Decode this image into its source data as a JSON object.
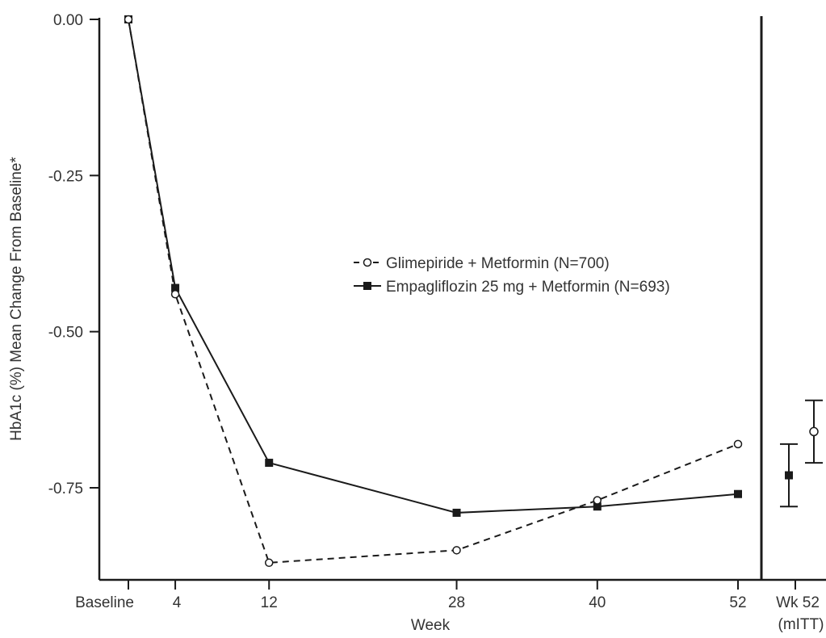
{
  "chart_data": {
    "type": "line",
    "xlabel": "Week",
    "ylabel": "HbA1c (%) Mean Change From Baseline*",
    "ylim": [
      -0.88,
      0.0
    ],
    "yticks": [
      "0.00",
      "-0.25",
      "-0.50",
      "-0.75"
    ],
    "x": [
      0,
      4,
      12,
      28,
      40,
      52
    ],
    "xtick_labels": [
      "Baseline",
      "4",
      "12",
      "28",
      "40",
      "52"
    ],
    "legend_placement": "center-right",
    "series": [
      {
        "name": "Glimepiride + Metformin (N=700)",
        "line_style": "dashed",
        "marker": "open-circle",
        "values": [
          0.0,
          -0.44,
          -0.87,
          -0.85,
          -0.77,
          -0.68
        ]
      },
      {
        "name": "Empagliflozin 25 mg + Metformin (N=693)",
        "line_style": "solid",
        "marker": "filled-square",
        "values": [
          0.0,
          -0.43,
          -0.71,
          -0.79,
          -0.78,
          -0.76
        ]
      }
    ],
    "endpoint_panel": {
      "label_line1": "Wk 52",
      "label_line2": "(mITT)",
      "points": [
        {
          "series": "Empagliflozin 25 mg + Metformin (N=693)",
          "value": -0.73,
          "ci_low": -0.78,
          "ci_high": -0.68
        },
        {
          "series": "Glimepiride + Metformin (N=700)",
          "value": -0.66,
          "ci_low": -0.71,
          "ci_high": -0.61
        }
      ]
    },
    "colors": {
      "ink": "#1a1a1a",
      "text": "#333333"
    }
  }
}
